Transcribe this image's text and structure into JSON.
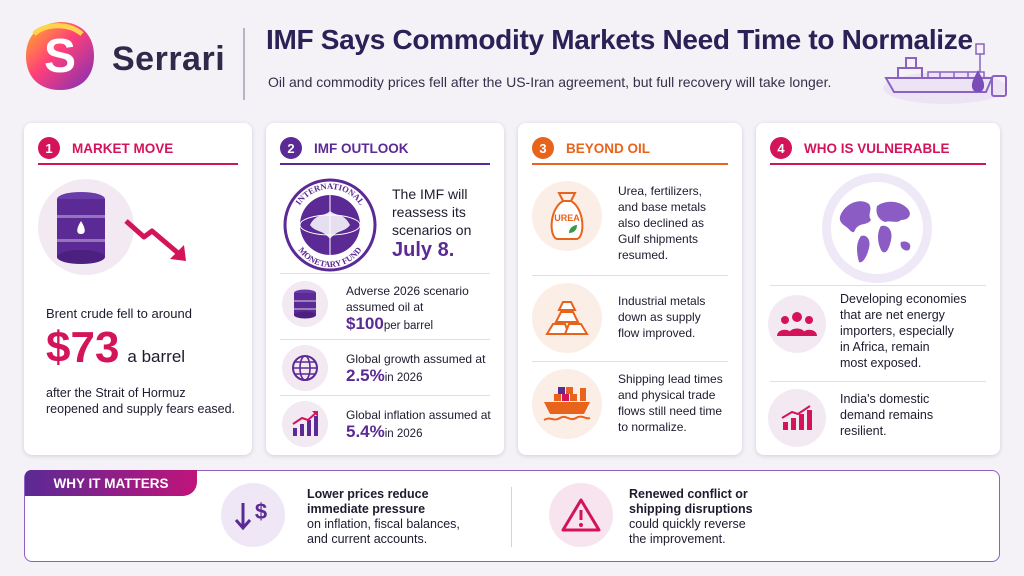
{
  "header": {
    "brand": "Serrari",
    "title": "IMF Says Commodity Markets Need Time to Normalize",
    "subtitle": "Oil and commodity prices fell after the US-Iran agreement, but full recovery will take longer."
  },
  "cards": [
    {
      "number": "1",
      "title": "MARKET MOVE",
      "intro": "Brent crude fell to around",
      "price": "$73",
      "price_unit": "a barrel",
      "detail_line1": "after the Strait of Hormuz",
      "detail_line2": "reopened and supply fears eased."
    },
    {
      "number": "2",
      "title": "IMF OUTLOOK",
      "seal_top": "INTERNATIONAL",
      "seal_bottom": "MONETARY FUND",
      "reassess_line1": "The IMF will",
      "reassess_line2": "reassess its",
      "reassess_line3": "scenarios on",
      "date": "July 8.",
      "items": [
        {
          "line1": "Adverse 2026 scenario",
          "line2": "assumed oil at",
          "value": "$100",
          "suffix": " per barrel"
        },
        {
          "line1": "Global growth assumed at",
          "line2": "",
          "value": "2.5%",
          "suffix": " in 2026"
        },
        {
          "line1": "Global inflation assumed at",
          "line2": "",
          "value": "5.4%",
          "suffix": " in 2026"
        }
      ]
    },
    {
      "number": "3",
      "title": "BEYOND OIL",
      "bag_label": "UREA",
      "items": [
        {
          "lines": [
            "Urea, fertilizers,",
            "and base metals",
            "also declined as",
            "Gulf shipments",
            "resumed."
          ]
        },
        {
          "lines": [
            "Industrial metals",
            "down as supply",
            "flow improved."
          ]
        },
        {
          "lines": [
            "Shipping lead times",
            "and physical trade",
            "flows still need time",
            "to normalize."
          ]
        }
      ]
    },
    {
      "number": "4",
      "title": "WHO IS VULNERABLE",
      "items": [
        {
          "lines": [
            "Developing economies",
            "that are net energy",
            "importers, especially",
            "in Africa, remain",
            "most exposed."
          ]
        },
        {
          "lines": [
            "India's domestic",
            "demand remains",
            "resilient."
          ]
        }
      ]
    }
  ],
  "why": {
    "label": "WHY IT MATTERS",
    "left_bold1": "Lower prices reduce",
    "left_bold2": "immediate pressure",
    "left_line1": "on inflation, fiscal balances,",
    "left_line2": "and current accounts.",
    "right_bold1": "Renewed conflict or",
    "right_bold2": "shipping disruptions",
    "right_line1": "could quickly reverse",
    "right_line2": "the improvement."
  },
  "colors": {
    "magenta": "#d4145a",
    "purple": "#5b2a95",
    "orange": "#e8631c"
  },
  "icons": [
    "serrari-logo",
    "tanker-ship-icon",
    "oil-barrel-icon",
    "down-arrow-icon",
    "imf-seal-icon",
    "globe-icon",
    "growth-chart-icon",
    "urea-bag-icon",
    "metal-bars-icon",
    "cargo-ship-icon",
    "world-map-icon",
    "people-group-icon",
    "bar-chart-up-icon",
    "down-dollar-icon",
    "warning-icon"
  ]
}
